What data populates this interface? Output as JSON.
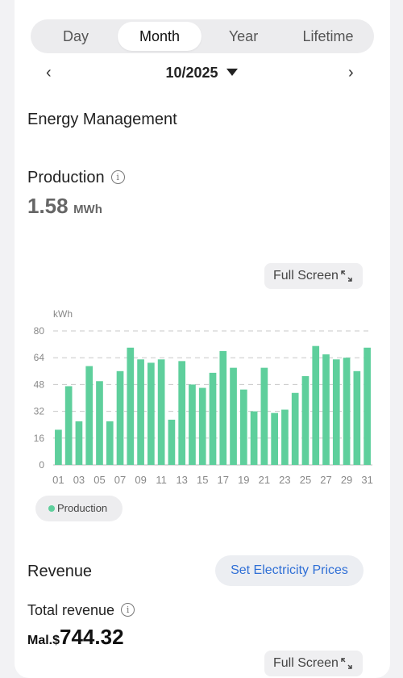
{
  "tabs": [
    "Day",
    "Month",
    "Year",
    "Lifetime"
  ],
  "active_tab": "Month",
  "date": "10/2025",
  "nav": {
    "prev": "‹",
    "next": "›"
  },
  "energy_title": "Energy Management",
  "production": {
    "label": "Production",
    "value": "1.58",
    "unit": "MWh"
  },
  "full_screen_label": "Full Screen",
  "legend_label": "Production",
  "revenue": {
    "title": "Revenue",
    "set_prices_label": "Set Electricity Prices",
    "total_label": "Total revenue",
    "currency": "Mal.$",
    "value": "744.32"
  },
  "colors": {
    "bar": "#5ecf9c",
    "link": "#2f6fd6"
  },
  "chart_data": {
    "type": "bar",
    "ylabel": "kWh",
    "ylim": [
      0,
      80
    ],
    "yticks": [
      0,
      16,
      32,
      48,
      64,
      80
    ],
    "categories": [
      "01",
      "02",
      "03",
      "04",
      "05",
      "06",
      "07",
      "08",
      "09",
      "10",
      "11",
      "12",
      "13",
      "14",
      "15",
      "16",
      "17",
      "18",
      "19",
      "20",
      "21",
      "22",
      "23",
      "24",
      "25",
      "26",
      "27",
      "28",
      "29",
      "30",
      "31"
    ],
    "xtick_labels": [
      "01",
      "03",
      "05",
      "07",
      "09",
      "11",
      "13",
      "15",
      "17",
      "19",
      "21",
      "23",
      "25",
      "27",
      "29",
      "31"
    ],
    "series": [
      {
        "name": "Production",
        "values": [
          21,
          47,
          26,
          59,
          50,
          26,
          56,
          70,
          63,
          61,
          63,
          27,
          62,
          48,
          46,
          55,
          68,
          58,
          45,
          32,
          58,
          31,
          33,
          43,
          53,
          71,
          66,
          63,
          64,
          56,
          70
        ]
      }
    ],
    "grid": true
  }
}
